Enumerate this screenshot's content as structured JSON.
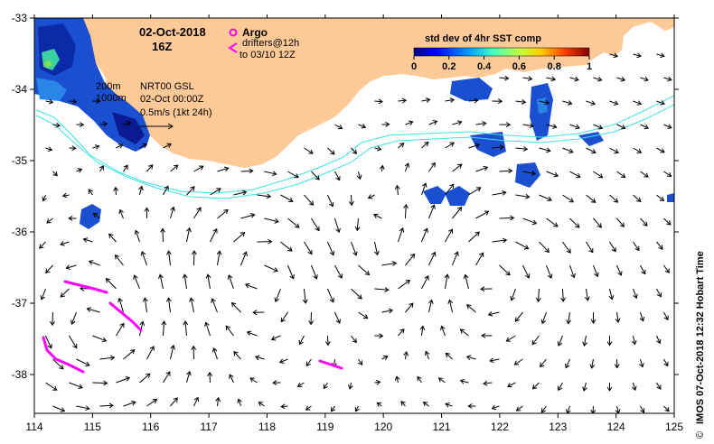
{
  "map": {
    "date": "02-Oct-2018",
    "time": "16Z",
    "legend": {
      "argo_label": "Argo",
      "drifters_label": "drifters@12h",
      "drifters_until": "to 03/10 12Z"
    },
    "depth_labels": [
      "200m",
      "1000m"
    ],
    "current_info": {
      "line1": "NRT00 GSL",
      "line2": "02-Oct 00:00Z",
      "line3": "0.5m/s (1kt 24h)"
    },
    "colorbar": {
      "title": "std dev of 4hr SST comp",
      "ticks": [
        "0",
        "0.2",
        "0.4",
        "0.6",
        "0.8",
        "1"
      ]
    },
    "lat_ticks": [
      "-33",
      "-34",
      "-35",
      "-36",
      "-37",
      "-38"
    ],
    "lon_ticks": [
      "114",
      "115",
      "116",
      "117",
      "118",
      "119",
      "120",
      "121",
      "122",
      "123",
      "124",
      "125"
    ],
    "credit": "IMOS 07-Oct-2018 12:32 Hobart Time",
    "copyright_symbol": "©",
    "colors": {
      "land": "#fcc997",
      "contour": "#40e0e0",
      "drifter": "#ff00ff",
      "arrow": "#000000"
    }
  }
}
